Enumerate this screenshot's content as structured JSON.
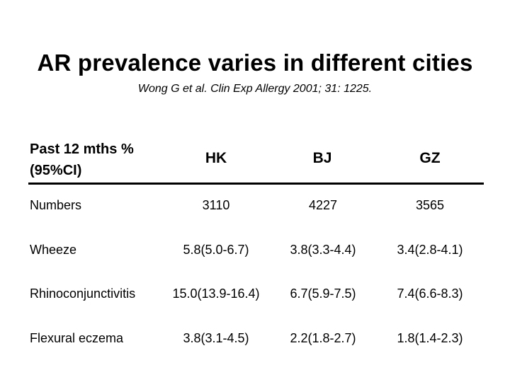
{
  "slide": {
    "title": "AR prevalence varies in different cities",
    "citation": "Wong G et al. Clin Exp Allergy 2001; 31: 1225."
  },
  "table": {
    "header_label": "Past 12 mths %(95%CI)",
    "columns": [
      "HK",
      "BJ",
      "GZ"
    ],
    "rows": [
      {
        "label": "Numbers",
        "values": [
          "3110",
          "4227",
          "3565"
        ]
      },
      {
        "label": "Wheeze",
        "values": [
          "5.8(5.0-6.7)",
          "3.8(3.3-4.4)",
          "3.4(2.8-4.1)"
        ]
      },
      {
        "label": "Rhinoconjunctivitis",
        "values": [
          "15.0(13.9-16.4)",
          "6.7(5.9-7.5)",
          "7.4(6.6-8.3)"
        ]
      },
      {
        "label": "Flexural eczema",
        "values": [
          "3.8(3.1-4.5)",
          "2.2(1.8-2.7)",
          "1.8(1.4-2.3)"
        ]
      }
    ]
  }
}
